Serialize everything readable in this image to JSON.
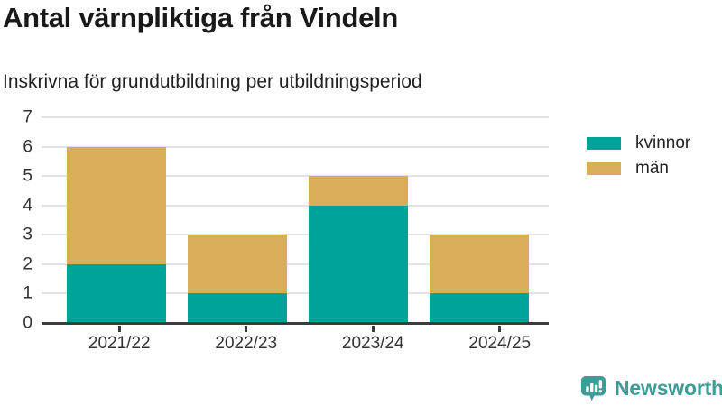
{
  "header": {
    "title": "Antal värnpliktiga från Vindeln",
    "subtitle": "Inskrivna för grundutbildning per utbildningsperiod"
  },
  "chart_data": {
    "type": "bar",
    "stacked": true,
    "title": "Antal värnpliktiga från Vindeln",
    "subtitle": "Inskrivna för grundutbildning per utbildningsperiod",
    "categories": [
      "2021/22",
      "2022/23",
      "2023/24",
      "2024/25"
    ],
    "series": [
      {
        "name": "kvinnor",
        "color": "#00a39a",
        "values": [
          2,
          1,
          4,
          1
        ]
      },
      {
        "name": "män",
        "color": "#d9ae58",
        "values": [
          4,
          2,
          1,
          2
        ]
      }
    ],
    "totals": [
      6,
      3,
      5,
      3
    ],
    "xlabel": "",
    "ylabel": "",
    "ylim": [
      0,
      7
    ],
    "yticks": [
      0,
      1,
      2,
      3,
      4,
      5,
      6,
      7
    ],
    "grid": true,
    "legend_position": "right"
  },
  "colors": {
    "kvinnor": "#00a39a",
    "man": "#d9ae58",
    "gridline": "#e3e3e3",
    "axis": "#3c3c3c",
    "text": "#333333",
    "brand": "#3f9c97"
  },
  "branding": {
    "logo_text": "Newsworthy",
    "logo_icon": "bar-chart-speech-bubble-icon"
  }
}
